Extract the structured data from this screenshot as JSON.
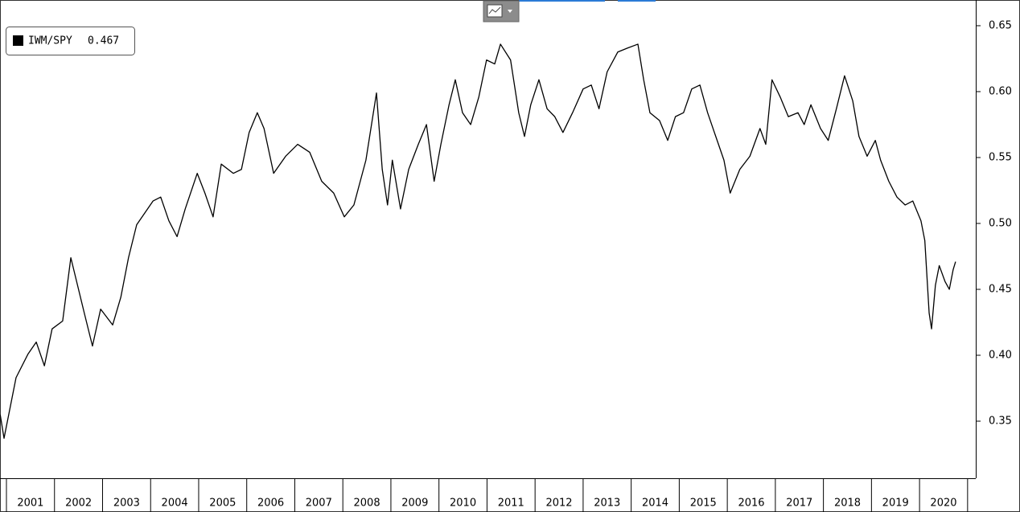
{
  "chart_data": {
    "type": "line",
    "legend_value": 0.467,
    "color": "#000000",
    "series": [
      {
        "name": "IWM/SPY",
        "color": "#000000",
        "x": [
          2000.87,
          2000.95,
          2001.2,
          2001.45,
          2001.62,
          2001.79,
          2001.95,
          2002.17,
          2002.34,
          2002.46,
          2002.62,
          2002.79,
          2002.96,
          2003.21,
          2003.38,
          2003.54,
          2003.71,
          2003.88,
          2004.05,
          2004.21,
          2004.38,
          2004.55,
          2004.72,
          2004.97,
          2005.13,
          2005.3,
          2005.47,
          2005.72,
          2005.89,
          2006.05,
          2006.22,
          2006.36,
          2006.56,
          2006.81,
          2007.06,
          2007.31,
          2007.56,
          2007.81,
          2008.03,
          2008.23,
          2008.48,
          2008.7,
          2008.82,
          2008.93,
          2009.03,
          2009.2,
          2009.37,
          2009.57,
          2009.74,
          2009.9,
          2010.04,
          2010.21,
          2010.34,
          2010.49,
          2010.66,
          2010.83,
          2010.99,
          2011.16,
          2011.28,
          2011.49,
          2011.66,
          2011.78,
          2011.91,
          2012.08,
          2012.25,
          2012.41,
          2012.58,
          2012.78,
          2013.0,
          2013.17,
          2013.33,
          2013.5,
          2013.72,
          2013.92,
          2014.14,
          2014.26,
          2014.39,
          2014.59,
          2014.76,
          2014.92,
          2015.09,
          2015.26,
          2015.43,
          2015.59,
          2015.76,
          2015.93,
          2016.06,
          2016.26,
          2016.47,
          2016.68,
          2016.8,
          2016.93,
          2017.1,
          2017.27,
          2017.47,
          2017.6,
          2017.74,
          2017.94,
          2018.1,
          2018.27,
          2018.44,
          2018.61,
          2018.74,
          2018.91,
          2019.08,
          2019.19,
          2019.36,
          2019.53,
          2019.7,
          2019.86,
          2020.03,
          2020.11,
          2020.2,
          2020.25,
          2020.33,
          2020.41,
          2020.53,
          2020.62,
          2020.7,
          2020.75
        ],
        "values": [
          0.355,
          0.337,
          0.383,
          0.401,
          0.41,
          0.392,
          0.42,
          0.426,
          0.474,
          0.456,
          0.432,
          0.407,
          0.435,
          0.423,
          0.444,
          0.474,
          0.499,
          0.508,
          0.517,
          0.52,
          0.502,
          0.49,
          0.511,
          0.538,
          0.523,
          0.505,
          0.545,
          0.538,
          0.541,
          0.569,
          0.584,
          0.572,
          0.538,
          0.551,
          0.56,
          0.554,
          0.532,
          0.523,
          0.505,
          0.514,
          0.548,
          0.599,
          0.541,
          0.514,
          0.548,
          0.511,
          0.541,
          0.56,
          0.575,
          0.532,
          0.56,
          0.59,
          0.609,
          0.584,
          0.575,
          0.596,
          0.624,
          0.621,
          0.636,
          0.624,
          0.584,
          0.566,
          0.59,
          0.609,
          0.587,
          0.581,
          0.569,
          0.584,
          0.602,
          0.605,
          0.587,
          0.615,
          0.63,
          0.633,
          0.636,
          0.609,
          0.584,
          0.578,
          0.563,
          0.581,
          0.584,
          0.602,
          0.605,
          0.584,
          0.566,
          0.548,
          0.523,
          0.541,
          0.551,
          0.572,
          0.56,
          0.609,
          0.596,
          0.581,
          0.584,
          0.575,
          0.59,
          0.572,
          0.563,
          0.587,
          0.612,
          0.593,
          0.566,
          0.551,
          0.563,
          0.548,
          0.532,
          0.52,
          0.514,
          0.517,
          0.502,
          0.487,
          0.432,
          0.42,
          0.453,
          0.468,
          0.456,
          0.45,
          0.465,
          0.471
        ]
      }
    ],
    "xlim": [
      2000.866,
      2021.17
    ],
    "xticks": [
      2001,
      2002,
      2003,
      2004,
      2005,
      2006,
      2007,
      2008,
      2009,
      2010,
      2011,
      2012,
      2013,
      2014,
      2015,
      2016,
      2017,
      2018,
      2019,
      2020
    ],
    "ylim": [
      0.3067,
      0.6695
    ],
    "yticks": [
      0.35,
      {
        "value": 0.4,
        "label": "0.40"
      },
      0.45,
      {
        "value": 0.5,
        "label": "0.50"
      },
      0.55,
      {
        "value": 0.6,
        "label": "0.60"
      },
      0.65
    ]
  }
}
